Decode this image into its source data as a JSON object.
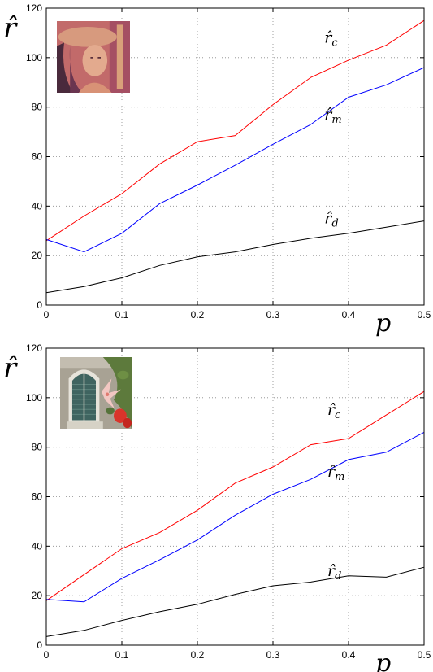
{
  "chart_data": [
    {
      "type": "line",
      "title": "",
      "xlabel": "p",
      "ylabel": "r̂",
      "xlim": [
        0,
        0.5
      ],
      "ylim": [
        0,
        120
      ],
      "xticks": [
        "0",
        "0.1",
        "0.2",
        "0.3",
        "0.4",
        "0.5"
      ],
      "yticks": [
        "0",
        "20",
        "40",
        "60",
        "80",
        "100",
        "120"
      ],
      "grid": true,
      "inset_image": "lena-portrait-thumbnail",
      "x": [
        0,
        0.05,
        0.1,
        0.15,
        0.2,
        0.25,
        0.3,
        0.35,
        0.4,
        0.45,
        0.5
      ],
      "series": [
        {
          "label_base": "r̂",
          "label_sub": "c",
          "color": "#ff0000",
          "values": [
            26,
            36,
            45,
            57,
            66,
            68.5,
            81,
            92,
            99,
            105,
            115
          ]
        },
        {
          "label_base": "r̂",
          "label_sub": "m",
          "color": "#0000ff",
          "values": [
            26.5,
            21.5,
            29,
            41,
            48.5,
            56.5,
            65,
            73,
            84,
            89,
            96
          ]
        },
        {
          "label_base": "r̂",
          "label_sub": "d",
          "color": "#000000",
          "values": [
            5,
            7.5,
            11,
            16,
            19.5,
            21.5,
            24.5,
            27,
            29,
            31.5,
            34
          ]
        }
      ],
      "series_label_anchor": [
        {
          "x": 0.368,
          "y": 106
        },
        {
          "x": 0.368,
          "y": 75
        },
        {
          "x": 0.368,
          "y": 33
        }
      ]
    },
    {
      "type": "line",
      "title": "",
      "xlabel": "p",
      "ylabel": "r̂",
      "xlim": [
        0,
        0.5
      ],
      "ylim": [
        0,
        120
      ],
      "xticks": [
        "0",
        "0.1",
        "0.2",
        "0.3",
        "0.4",
        "0.5"
      ],
      "yticks": [
        "0",
        "20",
        "40",
        "60",
        "80",
        "100",
        "120"
      ],
      "grid": true,
      "inset_image": "window-with-flower-thumbnail",
      "x": [
        0,
        0.05,
        0.1,
        0.15,
        0.2,
        0.25,
        0.3,
        0.35,
        0.4,
        0.45,
        0.5
      ],
      "series": [
        {
          "label_base": "r̂",
          "label_sub": "c",
          "color": "#ff0000",
          "values": [
            18,
            28.5,
            39,
            45.5,
            54.5,
            65.5,
            72,
            81,
            83.5,
            93,
            102.5
          ]
        },
        {
          "label_base": "r̂",
          "label_sub": "m",
          "color": "#0000ff",
          "values": [
            18.5,
            17.5,
            27,
            34.5,
            42.5,
            52.5,
            61,
            67,
            75,
            78,
            86
          ]
        },
        {
          "label_base": "r̂",
          "label_sub": "d",
          "color": "#000000",
          "values": [
            3.5,
            6,
            10,
            13.5,
            16.5,
            20.5,
            24,
            25.5,
            28,
            27.5,
            31.5
          ]
        }
      ],
      "series_label_anchor": [
        {
          "x": 0.372,
          "y": 93
        },
        {
          "x": 0.372,
          "y": 68
        },
        {
          "x": 0.372,
          "y": 28
        }
      ]
    }
  ]
}
